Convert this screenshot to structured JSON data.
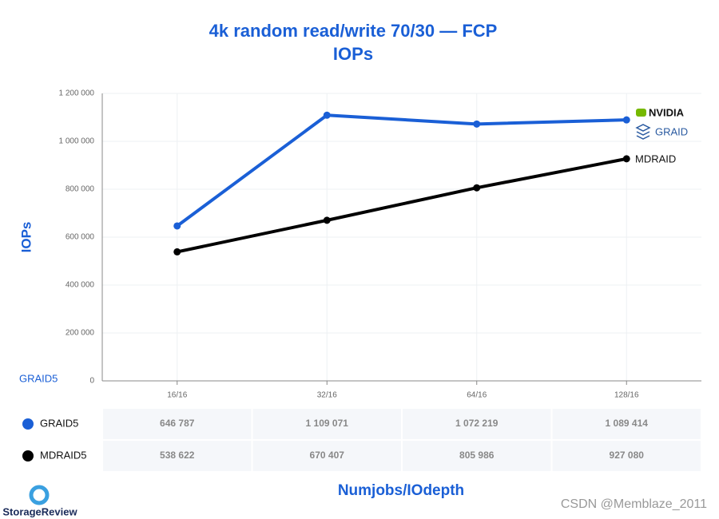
{
  "chart_data": {
    "type": "line",
    "title": "4k random read/write 70/30 — FCP",
    "subtitle": "IOPs",
    "y_label": "IOPs",
    "x_label": "Numjobs/IOdepth",
    "categories": [
      "16/16",
      "32/16",
      "64/16",
      "128/16"
    ],
    "series": [
      {
        "name": "GRAID5",
        "color": "#1a5fd6",
        "values": [
          646787,
          1109071,
          1072219,
          1089414
        ],
        "value_labels": [
          "646 787",
          "1 109 071",
          "1 072 219",
          "1 089 414"
        ]
      },
      {
        "name": "MDRAID5",
        "color": "#000000",
        "values": [
          538622,
          670407,
          805986,
          927080
        ],
        "value_labels": [
          "538 622",
          "670 407",
          "805 986",
          "927 080"
        ]
      }
    ],
    "ylim": [
      0,
      1200000
    ],
    "yticks": [
      0,
      {
        "value": 200000,
        "label": "200 000"
      },
      {
        "value": 400000,
        "label": "400 000"
      },
      {
        "value": 600000,
        "label": "600 000"
      },
      {
        "value": 800000,
        "label": "800 000"
      },
      {
        "value": 1000000,
        "label": "1 000 000"
      },
      {
        "value": 1200000,
        "label": "1 200 000"
      }
    ],
    "grid": true,
    "annotations": [
      "GRAID5",
      "NVIDIA",
      "GRAID",
      "MDRAID"
    ]
  },
  "branding": {
    "logo": "StorageReview",
    "watermark": "CSDN @Memblaze_2011"
  }
}
